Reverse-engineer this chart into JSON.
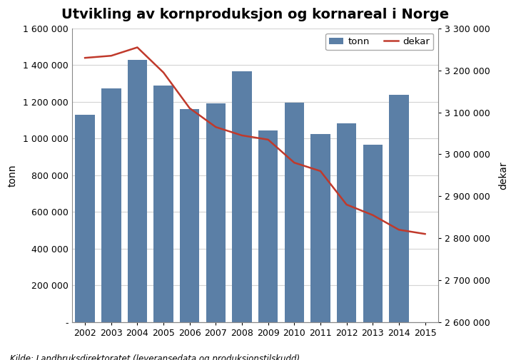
{
  "title": "Utvikling av kornproduksjon og kornareal i Norge",
  "years": [
    2002,
    2003,
    2004,
    2005,
    2006,
    2007,
    2008,
    2009,
    2010,
    2011,
    2012,
    2013,
    2014,
    2015
  ],
  "tonn": [
    1130000,
    1275000,
    1430000,
    1290000,
    1160000,
    1190000,
    1365000,
    1045000,
    1195000,
    1025000,
    1085000,
    965000,
    1240000,
    null
  ],
  "dekar": [
    3230000,
    3235000,
    3255000,
    3195000,
    3110000,
    3065000,
    3045000,
    3035000,
    2980000,
    2960000,
    2880000,
    2855000,
    2820000,
    2810000
  ],
  "bar_color": "#5B7FA6",
  "line_color": "#C0392B",
  "ylabel_left": "tonn",
  "ylabel_right": "dekar",
  "ylim_left": [
    0,
    1600000
  ],
  "ylim_right": [
    2600000,
    3300000
  ],
  "yticks_left": [
    0,
    200000,
    400000,
    600000,
    800000,
    1000000,
    1200000,
    1400000,
    1600000
  ],
  "yticks_right": [
    2600000,
    2700000,
    2800000,
    2900000,
    3000000,
    3100000,
    3200000,
    3300000
  ],
  "legend_labels": [
    "tonn",
    "dekar"
  ],
  "source_text": "Kilde: Landbruksdirektoratet (leveransedata og produksjonstilskudd)",
  "background_color": "#FFFFFF",
  "title_fontsize": 14,
  "axis_fontsize": 9,
  "source_fontsize": 8.5
}
